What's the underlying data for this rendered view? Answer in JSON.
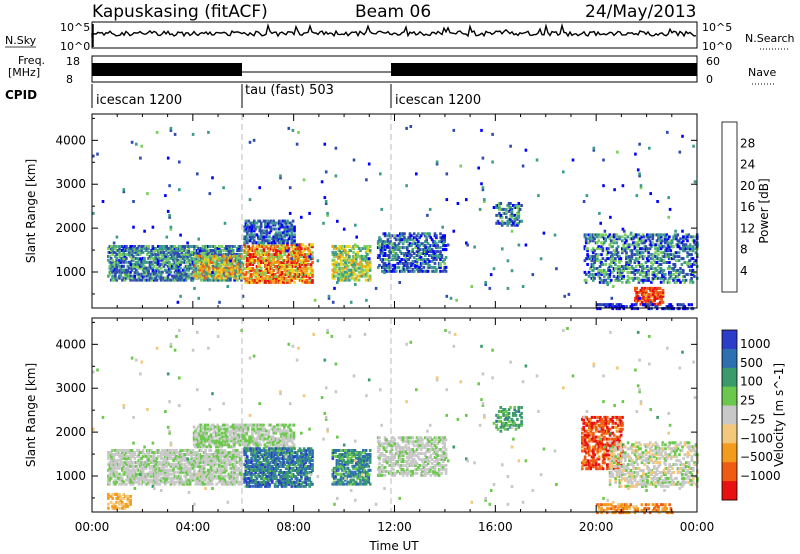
{
  "header": {
    "station": "Kapuskasing (fitACF)",
    "beam": "Beam 06",
    "date": "24/May/2013"
  },
  "noise_panel": {
    "left_label": "N.Sky",
    "left_ticks": [
      "10^5",
      "10^0"
    ],
    "right_label": "N.Search",
    "right_ticks": [
      "10^5",
      "10^0"
    ]
  },
  "freq_panel": {
    "left_label_line1": "Freq.",
    "left_label_line2": "[MHz]",
    "left_ticks": [
      "18",
      "8"
    ],
    "right_label": "Nave",
    "right_ticks": [
      "60",
      "0"
    ]
  },
  "cpid": {
    "label": "CPID",
    "segments": [
      {
        "name": "icescan 1200",
        "start_hour": 0,
        "end_hour": 6
      },
      {
        "name": "tau (fast) 503",
        "start_hour": 6,
        "end_hour": 12
      },
      {
        "name": "icescan 1200",
        "start_hour": 12,
        "end_hour": 24
      }
    ]
  },
  "chart_data": [
    {
      "type": "heatmap",
      "name": "power",
      "ylabel": "Slant Range [km]",
      "xlabel": "",
      "ylim": [
        180,
        4600
      ],
      "yticks": [
        1000,
        2000,
        3000,
        4000
      ],
      "xlim": [
        0,
        24
      ],
      "colorbar": {
        "label": "Power [dB]",
        "ticks": [
          "4",
          "8",
          "12",
          "16",
          "20",
          "24",
          "28"
        ],
        "colors": [
          "#0000ff",
          "#2f4bb0",
          "#3c9b8a",
          "#7ccf5e",
          "#f2d21a",
          "#f39b1c",
          "#ef5b12",
          "#e81010"
        ]
      },
      "scatter_regions": [
        {
          "t0": 0.6,
          "t1": 5.9,
          "r0": 850,
          "r1": 1650,
          "level": [
            0.1,
            0.45
          ],
          "density": 0.55
        },
        {
          "t0": 4.0,
          "t1": 6.0,
          "r0": 900,
          "r1": 1400,
          "level": [
            0.3,
            0.85
          ],
          "density": 0.45
        },
        {
          "t0": 6.0,
          "t1": 8.7,
          "r0": 800,
          "r1": 1700,
          "level": [
            0.4,
            1.0
          ],
          "density": 0.6
        },
        {
          "t0": 6.0,
          "t1": 8.0,
          "r0": 1700,
          "r1": 2200,
          "level": [
            0.05,
            0.35
          ],
          "density": 0.5
        },
        {
          "t0": 9.5,
          "t1": 11.0,
          "r0": 850,
          "r1": 1650,
          "level": [
            0.25,
            0.7
          ],
          "density": 0.5
        },
        {
          "t0": 11.3,
          "t1": 14.0,
          "r0": 1050,
          "r1": 1950,
          "level": [
            0.05,
            0.4
          ],
          "density": 0.4
        },
        {
          "t0": 16.0,
          "t1": 17.0,
          "r0": 2100,
          "r1": 2600,
          "level": [
            0.1,
            0.45
          ],
          "density": 0.35
        },
        {
          "t0": 19.5,
          "t1": 24.0,
          "r0": 800,
          "r1": 1900,
          "level": [
            0.05,
            0.5
          ],
          "density": 0.35
        },
        {
          "t0": 21.5,
          "t1": 22.6,
          "r0": 300,
          "r1": 700,
          "level": [
            0.7,
            1.0
          ],
          "density": 0.55
        },
        {
          "t0": 20.0,
          "t1": 23.8,
          "r0": 200,
          "r1": 330,
          "level": [
            0.0,
            0.25
          ],
          "density": 0.4
        },
        {
          "t0": 0.0,
          "t1": 24.0,
          "r0": 300,
          "r1": 4400,
          "level": [
            0.0,
            0.4
          ],
          "density": 0.006
        }
      ]
    },
    {
      "type": "heatmap",
      "name": "velocity",
      "ylabel": "Slant Range [km]",
      "xlabel": "Time UT",
      "ylim": [
        180,
        4600
      ],
      "yticks": [
        1000,
        2000,
        3000,
        4000
      ],
      "xlim": [
        0,
        24
      ],
      "xticks": [
        "00:00",
        "04:00",
        "08:00",
        "12:00",
        "16:00",
        "20:00",
        "00:00"
      ],
      "colorbar": {
        "label": "Velocity [m s^-1]",
        "ticks": [
          "1000",
          "500",
          "100",
          "25",
          "−25",
          "−100",
          "−500",
          "−1000"
        ],
        "colors": [
          "#2a3cc8",
          "#2e6fb2",
          "#3a9a6a",
          "#6cc84c",
          "#c8c8c8",
          "#f3c87a",
          "#f39b1c",
          "#ef5b12",
          "#e81010"
        ]
      },
      "scatter_regions": [
        {
          "t0": 0.6,
          "t1": 5.9,
          "r0": 850,
          "r1": 1650,
          "level": [
            0.4,
            0.55
          ],
          "density": 0.55
        },
        {
          "t0": 4.0,
          "t1": 8.0,
          "r0": 1700,
          "r1": 2200,
          "level": [
            0.4,
            0.5
          ],
          "density": 0.5
        },
        {
          "t0": 6.0,
          "t1": 8.7,
          "r0": 800,
          "r1": 1700,
          "level": [
            0.05,
            0.35
          ],
          "density": 0.6
        },
        {
          "t0": 9.5,
          "t1": 11.0,
          "r0": 850,
          "r1": 1650,
          "level": [
            0.1,
            0.4
          ],
          "density": 0.5
        },
        {
          "t0": 11.3,
          "t1": 14.0,
          "r0": 1050,
          "r1": 1950,
          "level": [
            0.4,
            0.55
          ],
          "density": 0.4
        },
        {
          "t0": 16.0,
          "t1": 17.0,
          "r0": 2100,
          "r1": 2600,
          "level": [
            0.2,
            0.4
          ],
          "density": 0.35
        },
        {
          "t0": 19.4,
          "t1": 21.0,
          "r0": 1200,
          "r1": 2400,
          "level": [
            0.75,
            1.0
          ],
          "density": 0.45
        },
        {
          "t0": 20.5,
          "t1": 24.0,
          "r0": 800,
          "r1": 1800,
          "level": [
            0.4,
            0.6
          ],
          "density": 0.35
        },
        {
          "t0": 0.6,
          "t1": 1.5,
          "r0": 300,
          "r1": 650,
          "level": [
            0.6,
            0.75
          ],
          "density": 0.4
        },
        {
          "t0": 20.0,
          "t1": 23.0,
          "r0": 200,
          "r1": 400,
          "level": [
            0.65,
            0.85
          ],
          "density": 0.4
        },
        {
          "t0": 0.0,
          "t1": 24.0,
          "r0": 300,
          "r1": 4400,
          "level": [
            0.3,
            0.6
          ],
          "density": 0.006
        }
      ]
    }
  ]
}
